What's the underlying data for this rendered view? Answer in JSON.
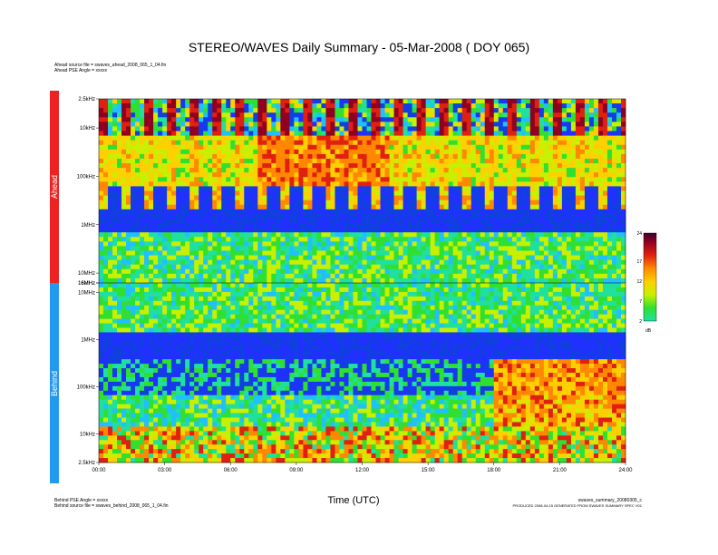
{
  "header": {
    "title": "STEREO/WAVES Daily Summary - 05-Mar-2008 ( DOY 065)",
    "ahead_source": "Ahead source file = swaves_ahead_2008_065_1_04.fin",
    "ahead_angle": "Ahead PSE Angle = xxxxx",
    "behind_angle": "Behind PSE Angle = xxxxx",
    "behind_source": "Behind source file = swaves_behind_2008_065_1_04.fin",
    "summary_file": "swaves_summary_20080305_c",
    "produced_line": "PRODUCED 2008-04-15 GENERATED FROM SWAVES SUMMARY SPEC V01"
  },
  "bands": {
    "ahead": "Ahead",
    "behind": "Behind"
  },
  "colors": {
    "ahead": "#ee2222",
    "behind": "#2299ee"
  },
  "chart_data": {
    "type": "heatmap",
    "title": "STEREO/WAVES Daily Summary - 05-Mar-2008 ( DOY 065)",
    "xlabel": "Time (UTC)",
    "x_ticks": [
      "00:00",
      "03:00",
      "06:00",
      "09:00",
      "12:00",
      "15:00",
      "18:00",
      "21:00",
      "24:00"
    ],
    "xlim_hours": [
      0,
      24
    ],
    "panels": [
      {
        "name": "Ahead",
        "y_ticks": [
          "2.5kHz",
          "10kHz",
          "100kHz",
          "1MHz",
          "10MHz",
          "16MHz"
        ],
        "y_range": [
          "16MHz",
          "2.5kHz"
        ]
      },
      {
        "name": "Behind",
        "y_ticks": [
          "16MHz",
          "10MHz",
          "1MHz",
          "100kHz",
          "10kHz",
          "2.5kHz"
        ],
        "y_range": [
          "16MHz",
          "2.5kHz"
        ]
      }
    ],
    "colorbar": {
      "ticks": [
        "24",
        "17",
        "12",
        "7",
        "2"
      ],
      "unit": "dB",
      "range": [
        2,
        24
      ]
    }
  }
}
